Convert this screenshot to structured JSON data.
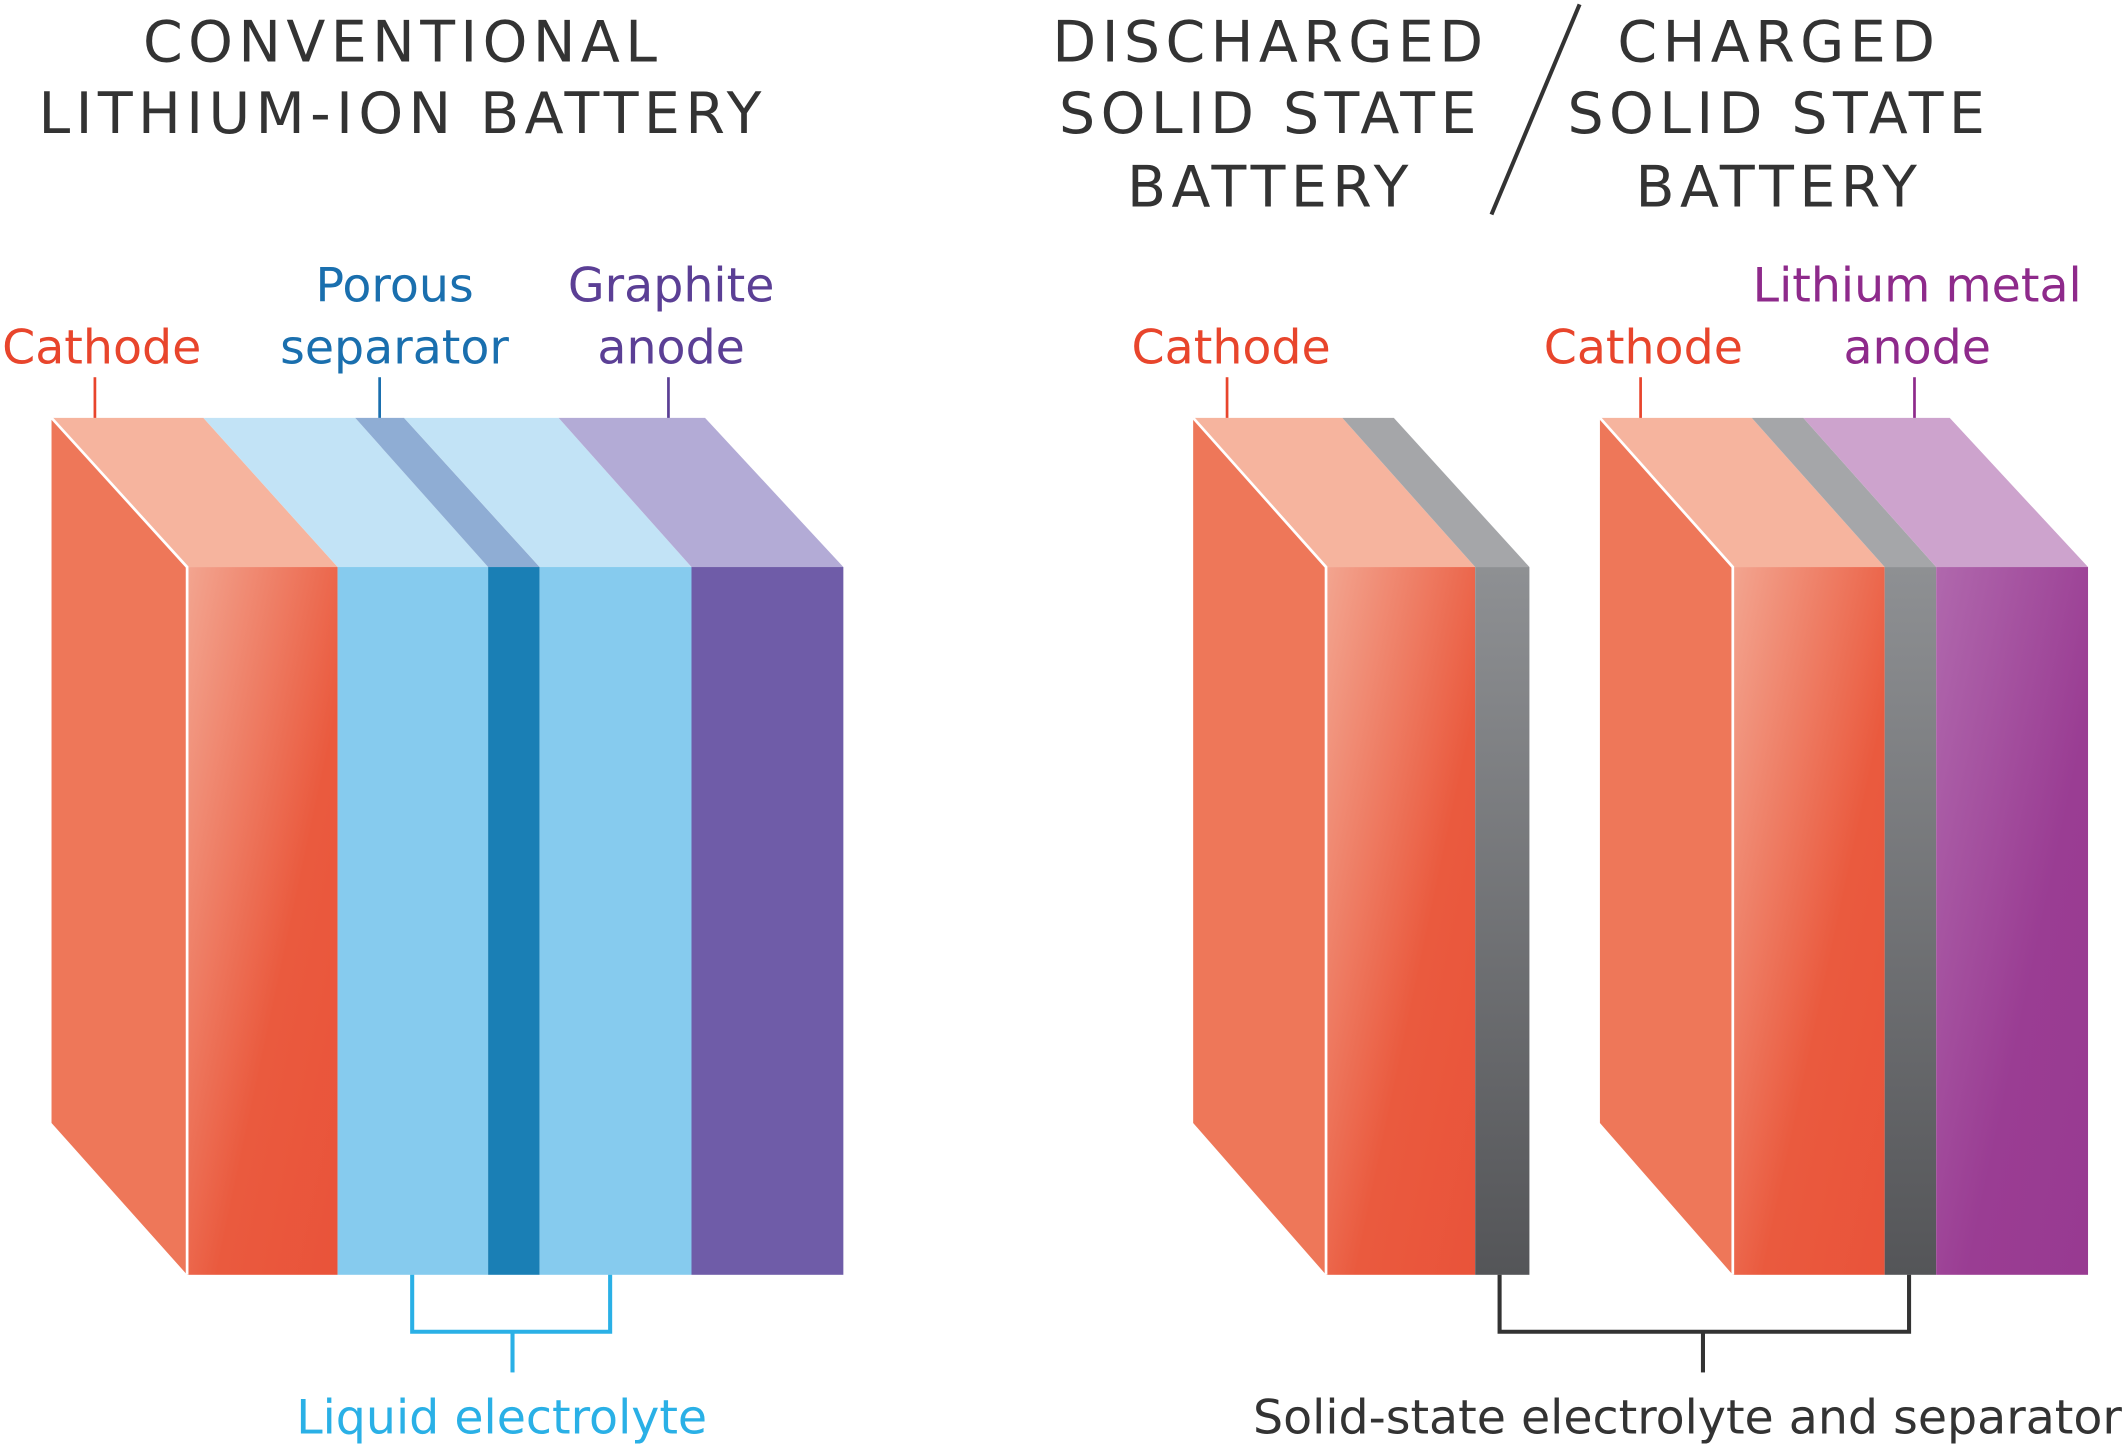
{
  "left": {
    "title_lines": [
      "CONVENTIONAL",
      "LITHIUM-ION BATTERY"
    ],
    "labels": {
      "cathode": "Cathode",
      "separator": [
        "Porous",
        "separator"
      ],
      "anode": [
        "Graphite",
        "anode"
      ],
      "electrolyte": "Liquid electrolyte"
    }
  },
  "right": {
    "discharged_title_lines": [
      "DISCHARGED",
      "SOLID STATE",
      "BATTERY"
    ],
    "charged_title_lines": [
      "CHARGED",
      "SOLID STATE",
      "BATTERY"
    ],
    "labels": {
      "cathode_discharged": "Cathode",
      "cathode_charged": "Cathode",
      "anode": [
        "Lithium metal",
        "anode"
      ],
      "electrolyte": "Solid-state electrolyte and separator"
    }
  },
  "colors": {
    "cathode_text": "#e8452c",
    "separator_text": "#1a6fae",
    "graphite_text": "#5b3f95",
    "lithium_text": "#8e2a8b",
    "liquid_text": "#2ab0e6",
    "cathode_side": "#ee7759",
    "cathode_top": "#f6b49e",
    "electrolyte_front": "#86cbee",
    "electrolyte_top": "#c2e3f6",
    "separator_front": "#1a7fb5",
    "separator_top": "#8fadd4",
    "graphite_front": "#6f5ca8",
    "graphite_top": "#b3abd6",
    "solid_electrolyte_front": "#5a5b5e",
    "solid_electrolyte_top": "#a5a6a9",
    "lithium_front": "#9a3d93",
    "lithium_top": "#cda3cd"
  }
}
